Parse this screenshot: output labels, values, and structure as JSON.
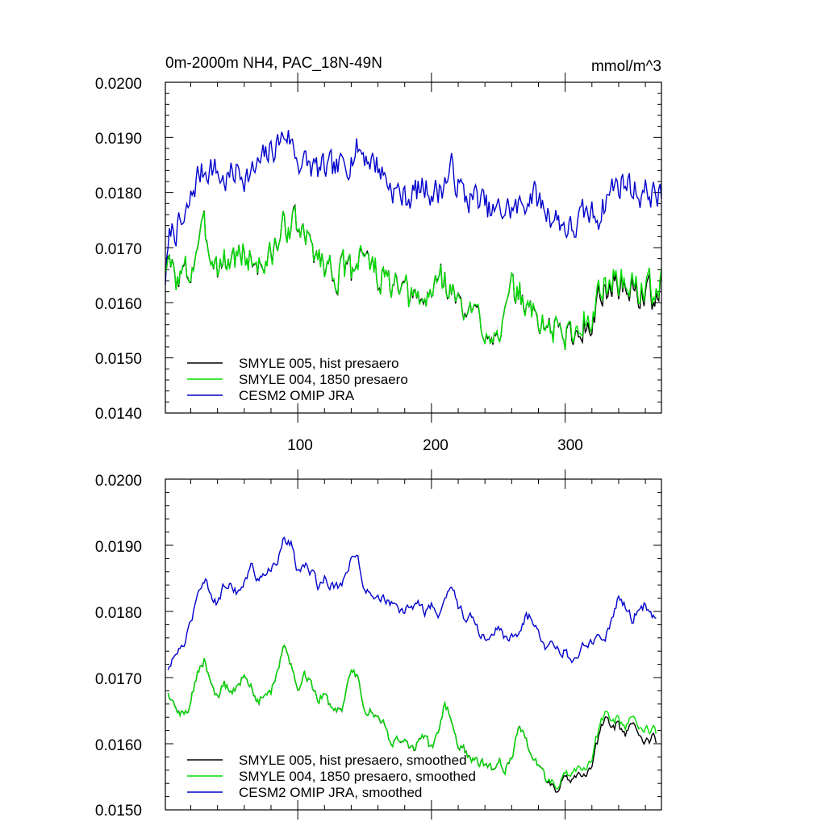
{
  "chart_data": [
    {
      "type": "line",
      "title": "0m-2000m NH4, PAC_18N-49N",
      "units": "mmol/m^3",
      "xlim": [
        1,
        372
      ],
      "ylim": [
        0.014,
        0.02
      ],
      "yticks": [
        "0.0200",
        "0.0190",
        "0.0180",
        "0.0170",
        "0.0160",
        "0.0150",
        "0.0140"
      ],
      "xticks": [
        "100",
        "200",
        "300"
      ],
      "legend": [
        {
          "label": "SMYLE 005, hist presaero",
          "color": "#000000"
        },
        {
          "label": "SMYLE 004, 1850 presaero",
          "color": "#00dd00"
        },
        {
          "label": "CESM2 OMIP JRA",
          "color": "#0000cc"
        }
      ],
      "series": [
        {
          "name": "CESM2 OMIP JRA",
          "color": "#0000cc",
          "noise": 0.00045,
          "x": [
            1,
            5,
            15,
            25,
            35,
            45,
            55,
            65,
            75,
            85,
            92,
            100,
            115,
            130,
            145,
            160,
            170,
            180,
            195,
            205,
            215,
            225,
            235,
            245,
            255,
            265,
            275,
            285,
            295,
            305,
            315,
            325,
            335,
            345,
            355,
            365,
            372
          ],
          "values": [
            0.01645,
            0.0173,
            0.0174,
            0.0183,
            0.0185,
            0.0182,
            0.0184,
            0.0183,
            0.0186,
            0.0189,
            0.0191,
            0.0186,
            0.0184,
            0.0184,
            0.0188,
            0.0185,
            0.0181,
            0.0179,
            0.0181,
            0.018,
            0.0184,
            0.0179,
            0.0179,
            0.0176,
            0.0177,
            0.0177,
            0.018,
            0.0177,
            0.0175,
            0.0173,
            0.0176,
            0.0176,
            0.0181,
            0.0182,
            0.018,
            0.018,
            0.0179
          ]
        },
        {
          "name": "SMYLE 005, hist presaero",
          "color": "#000000",
          "noise": 0.0005,
          "x": [
            1,
            5,
            10,
            20,
            25,
            30,
            40,
            50,
            60,
            70,
            80,
            88,
            95,
            110,
            125,
            140,
            148,
            155,
            170,
            180,
            190,
            200,
            205,
            215,
            225,
            235,
            245,
            255,
            260,
            265,
            275,
            285,
            295,
            305,
            315,
            325,
            335,
            345,
            355,
            365,
            372
          ],
          "values": [
            0.0167,
            0.0166,
            0.01645,
            0.01655,
            0.0171,
            0.01725,
            0.0167,
            0.0168,
            0.0169,
            0.0167,
            0.0168,
            0.0173,
            0.0175,
            0.017,
            0.0166,
            0.0165,
            0.0171,
            0.0166,
            0.0163,
            0.0161,
            0.016,
            0.0161,
            0.0166,
            0.0162,
            0.0158,
            0.0157,
            0.0155,
            0.0157,
            0.0161,
            0.0162,
            0.0158,
            0.0156,
            0.0155,
            0.0154,
            0.0156,
            0.016,
            0.0164,
            0.0163,
            0.0162,
            0.01615,
            0.0162
          ]
        },
        {
          "name": "SMYLE 004, 1850 presaero",
          "color": "#00dd00",
          "noise": 0.0005,
          "x": [
            1,
            5,
            10,
            20,
            25,
            30,
            40,
            50,
            60,
            70,
            80,
            88,
            95,
            110,
            125,
            140,
            148,
            155,
            170,
            180,
            190,
            200,
            205,
            215,
            225,
            235,
            245,
            255,
            260,
            265,
            275,
            285,
            295,
            305,
            315,
            325,
            335,
            345,
            355,
            365,
            372
          ],
          "values": [
            0.0167,
            0.0166,
            0.01645,
            0.01655,
            0.0171,
            0.01725,
            0.0167,
            0.0168,
            0.0169,
            0.0167,
            0.0168,
            0.0173,
            0.0175,
            0.017,
            0.0166,
            0.0165,
            0.0171,
            0.0166,
            0.0163,
            0.0161,
            0.016,
            0.0161,
            0.0166,
            0.0162,
            0.0158,
            0.0157,
            0.0155,
            0.0157,
            0.0161,
            0.0162,
            0.0158,
            0.0156,
            0.0155,
            0.01545,
            0.0157,
            0.0161,
            0.0165,
            0.01635,
            0.0163,
            0.01625,
            0.01625
          ]
        }
      ]
    },
    {
      "type": "line",
      "title": "",
      "xlim": [
        1,
        372
      ],
      "ylim": [
        0.015,
        0.02
      ],
      "yticks": [
        "0.0200",
        "0.0190",
        "0.0180",
        "0.0170",
        "0.0160",
        "0.0150"
      ],
      "legend": [
        {
          "label": "SMYLE 005, hist presaero, smoothed",
          "color": "#000000"
        },
        {
          "label": "SMYLE 004, 1850 presaero, smoothed",
          "color": "#00dd00"
        },
        {
          "label": "CESM2 OMIP JRA, smoothed",
          "color": "#0000cc"
        }
      ],
      "series": [
        {
          "name": "CESM2 OMIP JRA, smoothed",
          "color": "#0000cc",
          "noise": 0.00012,
          "x": [
            3,
            10,
            15,
            20,
            25,
            30,
            35,
            40,
            45,
            50,
            55,
            60,
            65,
            70,
            75,
            80,
            85,
            90,
            95,
            100,
            105,
            110,
            115,
            120,
            125,
            130,
            135,
            140,
            145,
            150,
            155,
            160,
            165,
            170,
            175,
            180,
            185,
            190,
            195,
            200,
            205,
            210,
            215,
            220,
            225,
            230,
            235,
            240,
            245,
            250,
            255,
            260,
            265,
            270,
            275,
            280,
            285,
            290,
            295,
            300,
            305,
            310,
            315,
            320,
            325,
            330,
            335,
            340,
            345,
            350,
            355,
            360,
            365,
            368
          ],
          "values": [
            0.0171,
            0.0174,
            0.0175,
            0.0178,
            0.0183,
            0.0185,
            0.0183,
            0.0181,
            0.0184,
            0.0184,
            0.0183,
            0.0184,
            0.0187,
            0.0185,
            0.0186,
            0.0186,
            0.0188,
            0.0191,
            0.019,
            0.0186,
            0.0187,
            0.0186,
            0.0184,
            0.0185,
            0.0184,
            0.0184,
            0.0185,
            0.0188,
            0.0188,
            0.0183,
            0.0183,
            0.0182,
            0.0182,
            0.0181,
            0.018,
            0.018,
            0.0181,
            0.0181,
            0.018,
            0.0181,
            0.0179,
            0.0182,
            0.0184,
            0.0181,
            0.0179,
            0.0179,
            0.0177,
            0.0176,
            0.0176,
            0.0178,
            0.0176,
            0.0176,
            0.0177,
            0.0179,
            0.0179,
            0.0177,
            0.0175,
            0.0176,
            0.0174,
            0.0174,
            0.0172,
            0.0174,
            0.0175,
            0.0175,
            0.0177,
            0.0176,
            0.0179,
            0.0182,
            0.0181,
            0.0179,
            0.018,
            0.0181,
            0.0179,
            0.0179
          ]
        },
        {
          "name": "SMYLE 005, hist presaero, smoothed",
          "color": "#000000",
          "noise": 0.00012,
          "x": [
            3,
            10,
            15,
            20,
            25,
            30,
            35,
            40,
            45,
            50,
            55,
            60,
            65,
            70,
            75,
            80,
            85,
            90,
            95,
            100,
            105,
            110,
            115,
            120,
            125,
            130,
            135,
            140,
            145,
            150,
            155,
            160,
            165,
            170,
            175,
            180,
            185,
            190,
            195,
            200,
            205,
            210,
            215,
            220,
            225,
            230,
            235,
            240,
            245,
            250,
            255,
            260,
            265,
            270,
            275,
            280,
            285,
            290,
            295,
            300,
            305,
            310,
            315,
            320,
            325,
            330,
            335,
            340,
            345,
            350,
            355,
            360,
            365,
            368
          ],
          "values": [
            0.01675,
            0.01645,
            0.01645,
            0.01665,
            0.0171,
            0.01725,
            0.0169,
            0.0167,
            0.0169,
            0.0168,
            0.0169,
            0.017,
            0.0169,
            0.01665,
            0.0167,
            0.0168,
            0.0171,
            0.01745,
            0.0172,
            0.0168,
            0.0171,
            0.0169,
            0.0167,
            0.0167,
            0.0165,
            0.0165,
            0.0166,
            0.0171,
            0.017,
            0.0165,
            0.0165,
            0.0164,
            0.0163,
            0.016,
            0.0161,
            0.016,
            0.0159,
            0.016,
            0.0161,
            0.0159,
            0.0162,
            0.0166,
            0.0164,
            0.016,
            0.0159,
            0.0158,
            0.0157,
            0.0157,
            0.0156,
            0.0158,
            0.0156,
            0.0158,
            0.0162,
            0.0161,
            0.0158,
            0.0157,
            0.0155,
            0.0154,
            0.0153,
            0.0155,
            0.0155,
            0.0156,
            0.0155,
            0.0157,
            0.0161,
            0.0164,
            0.0162,
            0.0163,
            0.0161,
            0.0163,
            0.0162,
            0.016,
            0.0161,
            0.01605
          ]
        },
        {
          "name": "SMYLE 004, 1850 presaero, smoothed",
          "color": "#00dd00",
          "noise": 0.00012,
          "x": [
            3,
            10,
            15,
            20,
            25,
            30,
            35,
            40,
            45,
            50,
            55,
            60,
            65,
            70,
            75,
            80,
            85,
            90,
            95,
            100,
            105,
            110,
            115,
            120,
            125,
            130,
            135,
            140,
            145,
            150,
            155,
            160,
            165,
            170,
            175,
            180,
            185,
            190,
            195,
            200,
            205,
            210,
            215,
            220,
            225,
            230,
            235,
            240,
            245,
            250,
            255,
            260,
            265,
            270,
            275,
            280,
            285,
            290,
            295,
            300,
            305,
            310,
            315,
            320,
            325,
            330,
            335,
            340,
            345,
            350,
            355,
            360,
            365,
            368
          ],
          "values": [
            0.01675,
            0.01645,
            0.01645,
            0.01665,
            0.0171,
            0.01725,
            0.0169,
            0.0167,
            0.0169,
            0.0168,
            0.0169,
            0.017,
            0.0169,
            0.01665,
            0.0167,
            0.0168,
            0.0171,
            0.01745,
            0.0172,
            0.0168,
            0.0171,
            0.0169,
            0.0167,
            0.0167,
            0.0165,
            0.0165,
            0.0166,
            0.0171,
            0.017,
            0.0165,
            0.0165,
            0.0164,
            0.0163,
            0.016,
            0.0161,
            0.016,
            0.0159,
            0.016,
            0.0161,
            0.0159,
            0.0162,
            0.0166,
            0.0164,
            0.016,
            0.0159,
            0.0158,
            0.0157,
            0.0157,
            0.0156,
            0.0158,
            0.0156,
            0.0158,
            0.0162,
            0.0161,
            0.0158,
            0.0157,
            0.0155,
            0.01545,
            0.01535,
            0.01555,
            0.0156,
            0.0157,
            0.0156,
            0.0158,
            0.0162,
            0.01648,
            0.0163,
            0.01638,
            0.0162,
            0.0164,
            0.0163,
            0.0162,
            0.0162,
            0.0162
          ]
        }
      ]
    }
  ]
}
